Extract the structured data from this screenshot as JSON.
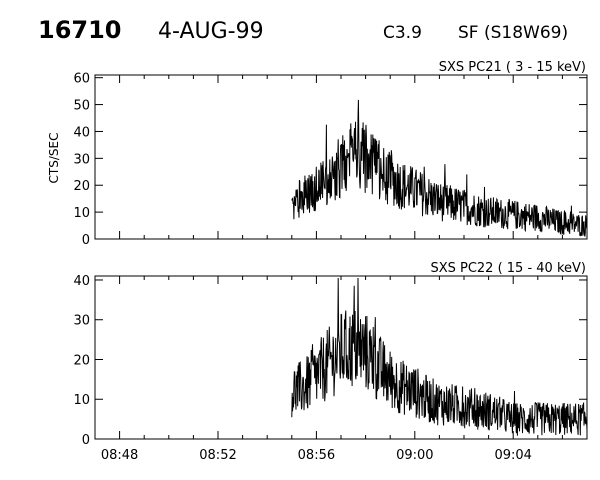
{
  "header": {
    "event_id": "16710",
    "date": "4-AUG-99",
    "flare_class": "C3.9",
    "flare_location": "SF (S18W69)"
  },
  "chart_data": [
    {
      "type": "line",
      "title": "SXS PC21  (  3 - 15 keV)",
      "ylabel": "CTS/SEC",
      "xlabel": "",
      "xlim": [
        "08:47",
        "09:07"
      ],
      "ylim": [
        0,
        61
      ],
      "yticks": [
        0,
        10,
        20,
        30,
        40,
        50,
        60
      ],
      "xticks": [
        "08:48",
        "08:52",
        "08:56",
        "09:00",
        "09:04"
      ],
      "grid": false,
      "series": [
        {
          "x": [
            "08:55",
            "08:55:30",
            "08:56",
            "08:56:30",
            "08:57",
            "08:57:30",
            "08:58",
            "08:58:30",
            "08:59",
            "08:59:30",
            "09:00",
            "09:00:30",
            "09:01",
            "09:02",
            "09:03",
            "09:04",
            "09:05",
            "09:06",
            "09:07"
          ],
          "values": [
            12,
            16,
            19,
            22,
            27,
            33,
            30,
            26,
            23,
            20,
            18,
            16,
            14,
            12,
            10,
            9,
            8,
            6,
            5
          ]
        }
      ]
    },
    {
      "type": "line",
      "title": "SXS PC22  ( 15 - 40 keV)",
      "ylabel": "",
      "xlabel": "",
      "xlim": [
        "08:47",
        "09:07"
      ],
      "ylim": [
        0,
        41
      ],
      "yticks": [
        0,
        10,
        20,
        30,
        40
      ],
      "xticks": [
        "08:48",
        "08:52",
        "08:56",
        "09:00",
        "09:04"
      ],
      "grid": false,
      "series": [
        {
          "x": [
            "08:55",
            "08:55:30",
            "08:56",
            "08:56:30",
            "08:57",
            "08:57:30",
            "08:58",
            "08:58:30",
            "08:59",
            "08:59:30",
            "09:00",
            "09:00:30",
            "09:01",
            "09:02",
            "09:03",
            "09:04",
            "09:05",
            "09:06",
            "09:07"
          ],
          "values": [
            12,
            13,
            16,
            19,
            22,
            23,
            22,
            18,
            15,
            13,
            12,
            10,
            9,
            8,
            7,
            5,
            5,
            5,
            5
          ]
        }
      ]
    }
  ]
}
